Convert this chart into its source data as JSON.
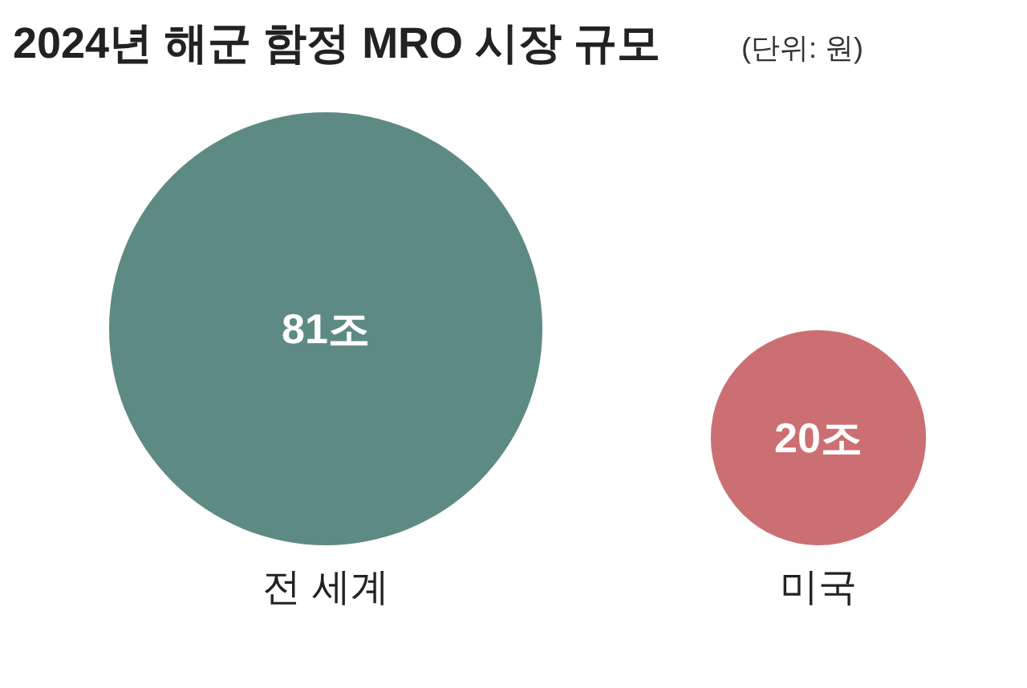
{
  "chart_data": {
    "type": "other",
    "title": "2024년 해군 함정 MRO 시장 규모",
    "subtitle": "(단위: 원)",
    "categories": [
      "전 세계",
      "미국"
    ],
    "values": [
      81,
      20
    ],
    "value_labels": [
      "81조",
      "20조"
    ],
    "colors": [
      "#5e8a84",
      "#cc6f73"
    ]
  }
}
